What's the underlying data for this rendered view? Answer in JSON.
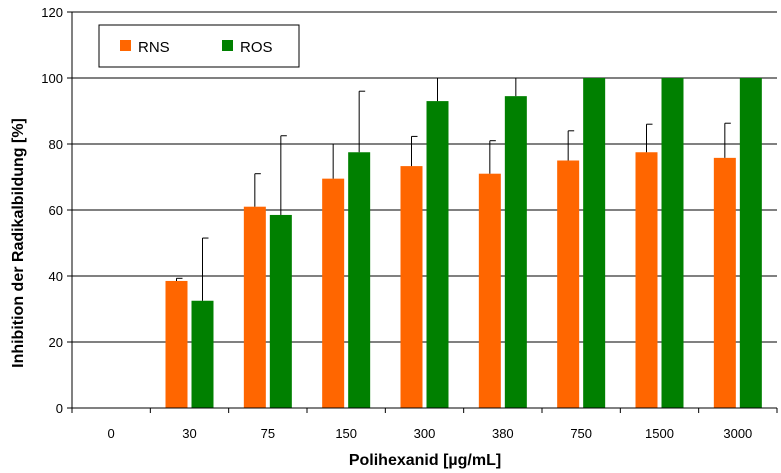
{
  "chart_data": {
    "type": "bar",
    "title": "",
    "xlabel": "Polihexanid [µg/mL]",
    "ylabel": "Inhibition der Radikalbildung [%]",
    "ylim": [
      0,
      120
    ],
    "yticks": [
      0,
      20,
      40,
      60,
      80,
      100,
      120
    ],
    "grid": true,
    "legend_position": "top-left",
    "categories": [
      "0",
      "30",
      "75",
      "150",
      "300",
      "380",
      "750",
      "1500",
      "3000"
    ],
    "series": [
      {
        "name": "RNS",
        "color": "#ff6600",
        "values": [
          0,
          38.5,
          61,
          69.5,
          73.3,
          71,
          75,
          77.5,
          75.8
        ],
        "error_up": [
          0,
          0.8,
          10,
          10.5,
          9,
          10,
          9,
          8.5,
          10.5
        ]
      },
      {
        "name": "ROS",
        "color": "#008000",
        "values": [
          0,
          32.5,
          58.5,
          77.5,
          93,
          94.5,
          100,
          100,
          100
        ],
        "error_up": [
          0,
          19,
          24,
          18.5,
          7,
          5.5,
          0,
          0,
          0
        ]
      }
    ]
  }
}
